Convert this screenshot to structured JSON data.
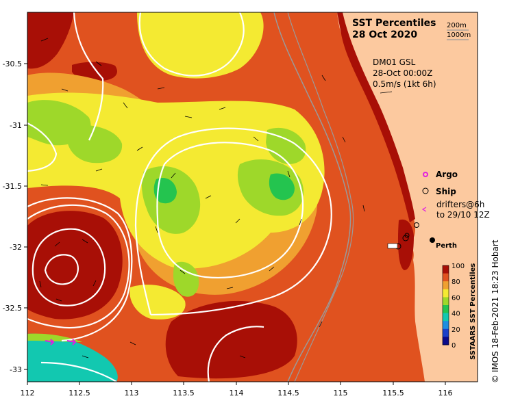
{
  "title_line1": "SST Percentiles",
  "title_line2": "28 Oct 2020",
  "depth_label_1": "200m",
  "depth_label_2": "1000m",
  "info_line1": "DM01 GSL",
  "info_line2": "28-Oct 00:00Z",
  "info_line3": "0.5m/s (1kt 6h)",
  "legend": {
    "argo": "Argo",
    "ship": "Ship",
    "drifters_line1": "drifters@6h",
    "drifters_line2": "to 29/10 12Z"
  },
  "place_label": "Perth",
  "colorbar": {
    "title": "SSTAARS SST Percentiles",
    "ticks": [
      "100",
      "80",
      "60",
      "40",
      "20",
      "0"
    ],
    "colors": [
      "#a80f06",
      "#e0521f",
      "#f0a030",
      "#f4ea32",
      "#9ed82a",
      "#24c44f",
      "#12c8b0",
      "#1e8ee0",
      "#1b3fc9",
      "#0b0a8a"
    ]
  },
  "credit": "© IMOS 18-Feb-2021 18:23 Hobart",
  "axes": {
    "x_ticks": [
      "112",
      "112.5",
      "113",
      "113.5",
      "114",
      "114.5",
      "115",
      "115.5",
      "116"
    ],
    "y_ticks": [
      "-30.5",
      "-31",
      "-31.5",
      "-32",
      "-32.5",
      "-33"
    ],
    "x_range": [
      112,
      116.3
    ],
    "y_range": [
      -33.1,
      -30.1
    ]
  },
  "colors": {
    "land": "#fcc99f",
    "contour": "#ffffff",
    "isobath": "#9a9a9a",
    "argo_marker": "#e020e0"
  }
}
